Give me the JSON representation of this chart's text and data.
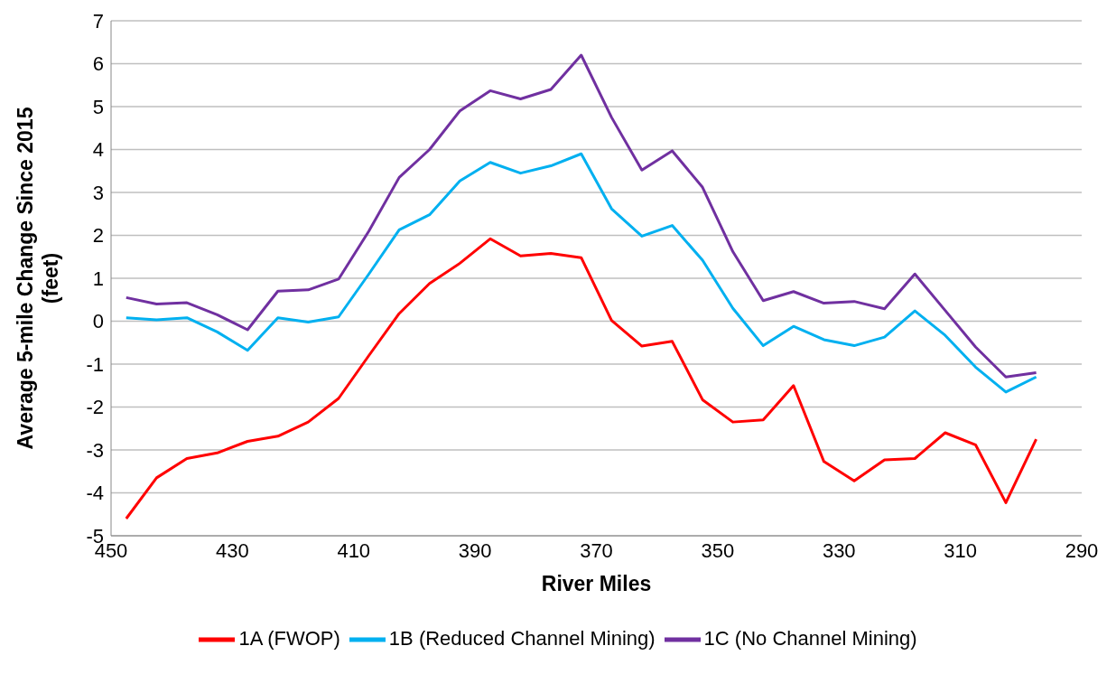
{
  "chart_data": {
    "type": "line",
    "xlabel": "River Miles",
    "ylabel": "Average 5-mile Change Since 2015 (feet)",
    "x": [
      447.5,
      442.5,
      437.5,
      432.5,
      427.5,
      422.5,
      417.5,
      412.5,
      407.5,
      402.5,
      397.5,
      392.5,
      387.5,
      382.5,
      377.5,
      372.5,
      367.5,
      362.5,
      357.5,
      352.5,
      347.5,
      342.5,
      337.5,
      332.5,
      327.5,
      322.5,
      317.5,
      312.5,
      307.5,
      302.5,
      297.5
    ],
    "series": [
      {
        "name": "1A (FWOP)",
        "color": "#ff0000",
        "values": [
          -4.6,
          -3.65,
          -3.2,
          -3.07,
          -2.8,
          -2.68,
          -2.35,
          -1.8,
          -0.8,
          0.18,
          0.88,
          1.35,
          1.92,
          1.52,
          1.58,
          1.48,
          0.02,
          -0.58,
          -0.47,
          -1.83,
          -2.35,
          -2.3,
          -1.5,
          -3.27,
          -3.72,
          -3.23,
          -3.2,
          -2.6,
          -2.88,
          -4.23,
          -2.75
        ]
      },
      {
        "name": "1B (Reduced Channel Mining)",
        "color": "#00b0f0",
        "values": [
          0.08,
          0.03,
          0.08,
          -0.25,
          -0.68,
          0.08,
          -0.02,
          0.1,
          1.1,
          2.13,
          2.48,
          3.27,
          3.7,
          3.45,
          3.62,
          3.9,
          2.62,
          1.98,
          2.23,
          1.42,
          0.3,
          -0.57,
          -0.12,
          -0.43,
          -0.57,
          -0.37,
          0.24,
          -0.33,
          -1.07,
          -1.65,
          -1.3
        ]
      },
      {
        "name": "1C (No Channel Mining)",
        "color": "#7030a0",
        "values": [
          0.55,
          0.4,
          0.43,
          0.15,
          -0.2,
          0.7,
          0.73,
          0.98,
          2.1,
          3.35,
          4.0,
          4.9,
          5.37,
          5.18,
          5.4,
          6.2,
          4.75,
          3.52,
          3.97,
          3.12,
          1.62,
          0.48,
          0.69,
          0.42,
          0.46,
          0.29,
          1.1,
          0.25,
          -0.6,
          -1.3,
          -1.2
        ]
      }
    ],
    "xlim": [
      450,
      290
    ],
    "xticks": [
      450,
      430,
      410,
      390,
      370,
      350,
      330,
      310,
      290
    ],
    "ylim": [
      -5,
      7
    ],
    "yticks": [
      -5,
      -4,
      -3,
      -2,
      -1,
      0,
      1,
      2,
      3,
      4,
      5,
      6,
      7
    ],
    "grid": "y",
    "legend": "bottom",
    "marker": "none",
    "line_style": "solid"
  }
}
